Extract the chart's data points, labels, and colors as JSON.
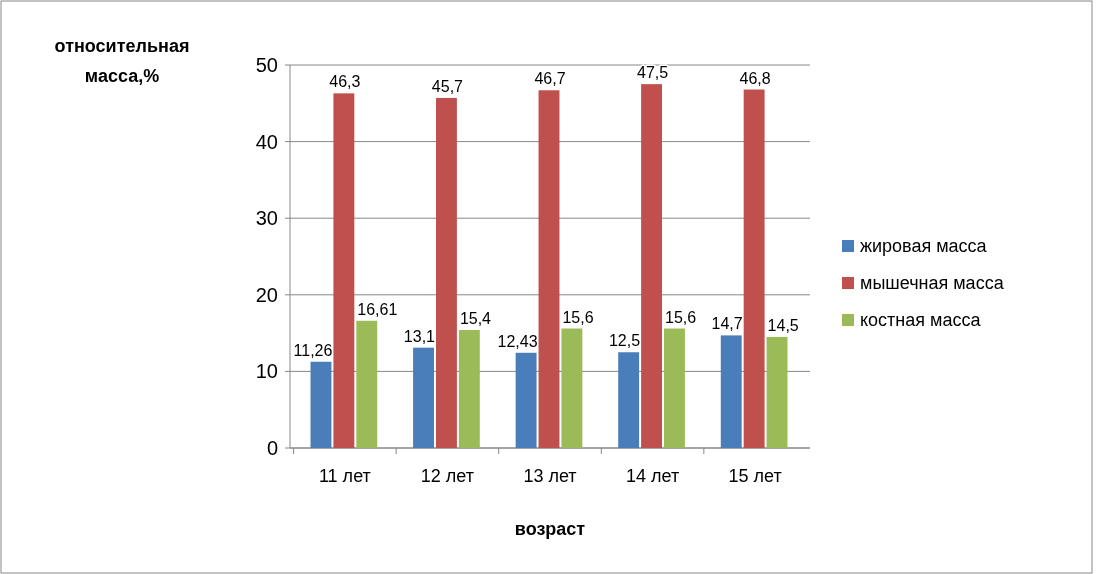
{
  "chart_data": {
    "type": "bar",
    "ylabel": "относительная масса,%",
    "xlabel": "возраст",
    "categories": [
      "11 лет",
      "12 лет",
      "13 лет",
      "14 лет",
      "15 лет"
    ],
    "series": [
      {
        "name": "жировая масса",
        "color": "#4a7ebb",
        "values": [
          11.26,
          13.1,
          12.43,
          12.5,
          14.7
        ],
        "value_labels": [
          "11,26",
          "13,1",
          "12,43",
          "12,5",
          "14,7"
        ]
      },
      {
        "name": "мышечная масса",
        "color": "#c0504d",
        "values": [
          46.3,
          45.7,
          46.7,
          47.5,
          46.8
        ],
        "value_labels": [
          "46,3",
          "45,7",
          "46,7",
          "47,5",
          "46,8"
        ]
      },
      {
        "name": "костная масса",
        "color": "#9bbb59",
        "values": [
          16.61,
          15.4,
          15.6,
          15.6,
          14.5
        ],
        "value_labels": [
          "16,61",
          "15,4",
          "15,6",
          "15,6",
          "14,5"
        ]
      }
    ],
    "ylim": [
      0,
      50
    ],
    "yticks": [
      0,
      10,
      20,
      30,
      40,
      50
    ],
    "grid": "y",
    "legend": "right"
  }
}
